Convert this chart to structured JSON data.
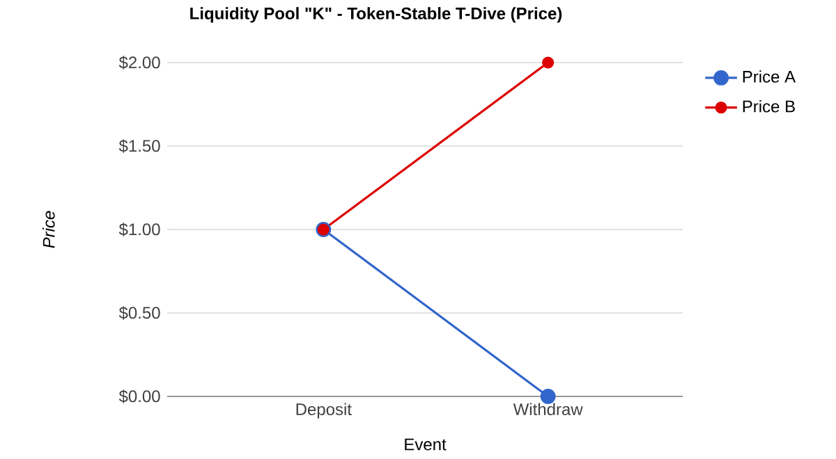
{
  "chart_data": {
    "type": "line",
    "title": "Liquidity Pool \"K\" - Token-Stable T-Dive (Price)",
    "xlabel": "Event",
    "ylabel": "Price",
    "categories": [
      "Deposit",
      "Withdraw"
    ],
    "series": [
      {
        "name": "Price A",
        "color": "#3366cc",
        "values": [
          1,
          0
        ]
      },
      {
        "name": "Price B",
        "color": "#dc0000",
        "values": [
          1,
          2
        ]
      }
    ],
    "ylim": [
      0,
      2
    ],
    "yticks": [
      {
        "value": 0,
        "label": "$0.00"
      },
      {
        "value": 0.5,
        "label": "$0.50"
      },
      {
        "value": 1,
        "label": "$1.00"
      },
      {
        "value": 1.5,
        "label": "$1.50"
      },
      {
        "value": 2,
        "label": "$2.00"
      }
    ],
    "grid": "y",
    "legend": "top right",
    "marker": "circle",
    "line_style": "solid"
  }
}
